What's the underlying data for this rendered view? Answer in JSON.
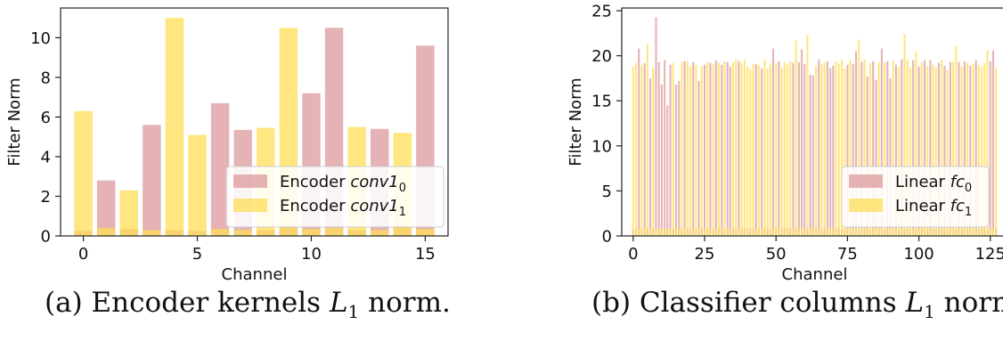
{
  "captions": {
    "a": {
      "prefix": "(a) Encoder kernels ",
      "math": "L",
      "sub": "1",
      "suffix": " norm."
    },
    "b": {
      "prefix": "(b) Classifier columns ",
      "math": "L",
      "sub": "1",
      "suffix": " norm."
    }
  },
  "colors": {
    "series0": "#dc9a9c",
    "series1": "#ffdd55",
    "overlap": "#ff8c00"
  },
  "chart_data": [
    {
      "type": "bar",
      "xlabel": "Channel",
      "ylabel": "Filter Norm",
      "xlim": [
        -1,
        16
      ],
      "ylim": [
        0,
        11.5
      ],
      "xticks": [
        0,
        5,
        10,
        15
      ],
      "yticks": [
        0,
        2,
        4,
        6,
        8,
        10
      ],
      "legend_position": "lower-right",
      "series": [
        {
          "name": "Encoder conv1",
          "subscript": "0",
          "color": "#dc9a9c",
          "x": [
            0,
            1,
            2,
            3,
            4,
            5,
            6,
            7,
            8,
            9,
            10,
            11,
            12,
            13,
            14,
            15
          ],
          "values": [
            0.25,
            2.8,
            0.35,
            5.6,
            0.3,
            0.25,
            6.7,
            5.35,
            0.3,
            0.45,
            7.2,
            10.5,
            0.3,
            5.4,
            0.45,
            9.6
          ]
        },
        {
          "name": "Encoder conv1",
          "subscript": "1",
          "color": "#ffdd55",
          "x": [
            0,
            1,
            2,
            3,
            4,
            5,
            6,
            7,
            8,
            9,
            10,
            11,
            12,
            13,
            14,
            15
          ],
          "values": [
            6.3,
            0.4,
            2.3,
            0.3,
            11.0,
            5.1,
            0.35,
            0.3,
            5.45,
            10.5,
            0.35,
            0.4,
            5.5,
            0.3,
            5.2,
            0.35
          ]
        }
      ]
    },
    {
      "type": "bar",
      "xlabel": "Channel",
      "ylabel": "Filter Norm",
      "xlim": [
        -4,
        131
      ],
      "ylim": [
        0,
        25.3
      ],
      "xticks": [
        0,
        25,
        50,
        75,
        100,
        125
      ],
      "yticks": [
        0,
        5,
        10,
        15,
        20,
        25
      ],
      "legend_position": "lower-right",
      "series": [
        {
          "name": "Linear fc",
          "subscript": "0",
          "color": "#dc9a9c",
          "x": [
            0,
            1,
            2,
            3,
            4,
            5,
            6,
            7,
            8,
            9,
            10,
            11,
            12,
            13,
            14,
            15,
            16,
            17,
            18,
            19,
            20,
            21,
            22,
            23,
            24,
            25,
            26,
            27,
            28,
            29,
            30,
            31,
            32,
            33,
            34,
            35,
            36,
            37,
            38,
            39,
            40,
            41,
            42,
            43,
            44,
            45,
            46,
            47,
            48,
            49,
            50,
            51,
            52,
            53,
            54,
            55,
            56,
            57,
            58,
            59,
            60,
            61,
            62,
            63,
            64,
            65,
            66,
            67,
            68,
            69,
            70,
            71,
            72,
            73,
            74,
            75,
            76,
            77,
            78,
            79,
            80,
            81,
            82,
            83,
            84,
            85,
            86,
            87,
            88,
            89,
            90,
            91,
            92,
            93,
            94,
            95,
            96,
            97,
            98,
            99,
            100,
            101,
            102,
            103,
            104,
            105,
            106,
            107,
            108,
            109,
            110,
            111,
            112,
            113,
            114,
            115,
            116,
            117,
            118,
            119,
            120,
            121,
            122,
            123,
            124,
            125,
            126,
            127
          ],
          "values": [
            0.8,
            0.9,
            20.8,
            0.8,
            19.2,
            0.8,
            17.5,
            0.9,
            24.3,
            19.3,
            16.8,
            19.5,
            14.5,
            19.0,
            0.8,
            16.8,
            17.2,
            0.9,
            19.4,
            0.8,
            0.9,
            19.3,
            0.8,
            17.2,
            0.9,
            19.0,
            0.8,
            19.2,
            0.8,
            19.5,
            0.9,
            19.0,
            0.8,
            19.3,
            18.8,
            0.9,
            0.8,
            19.4,
            0.8,
            0.9,
            0.8,
            0.8,
            0.9,
            19.1,
            0.8,
            18.6,
            0.9,
            0.8,
            0.8,
            20.8,
            0.9,
            19.4,
            0.8,
            0.9,
            0.8,
            0.8,
            19.2,
            0.9,
            19.3,
            20.7,
            19.1,
            0.8,
            17.9,
            17.8,
            0.9,
            19.6,
            0.8,
            0.9,
            19.4,
            18.6,
            18.9,
            0.8,
            0.9,
            0.8,
            0.8,
            19.0,
            0.9,
            19.1,
            20.5,
            0.8,
            19.3,
            0.9,
            17.7,
            0.8,
            19.4,
            17.3,
            0.9,
            20.8,
            0.8,
            19.4,
            17.5,
            0.9,
            19.0,
            0.8,
            19.6,
            0.8,
            0.9,
            0.8,
            19.5,
            0.8,
            18.8,
            0.9,
            19.5,
            0.8,
            19.5,
            0.8,
            0.8,
            19.2,
            0.9,
            18.9,
            0.8,
            19.3,
            0.9,
            0.8,
            19.3,
            0.8,
            19.4,
            0.9,
            18.9,
            0.8,
            19.5,
            0.8,
            0.9,
            0.8,
            0.8,
            19.4,
            20.6,
            0.9
          ]
        },
        {
          "name": "Linear fc",
          "subscript": "1",
          "color": "#ffdd55",
          "x": [
            0,
            1,
            2,
            3,
            4,
            5,
            6,
            7,
            8,
            9,
            10,
            11,
            12,
            13,
            14,
            15,
            16,
            17,
            18,
            19,
            20,
            21,
            22,
            23,
            24,
            25,
            26,
            27,
            28,
            29,
            30,
            31,
            32,
            33,
            34,
            35,
            36,
            37,
            38,
            39,
            40,
            41,
            42,
            43,
            44,
            45,
            46,
            47,
            48,
            49,
            50,
            51,
            52,
            53,
            54,
            55,
            56,
            57,
            58,
            59,
            60,
            61,
            62,
            63,
            64,
            65,
            66,
            67,
            68,
            69,
            70,
            71,
            72,
            73,
            74,
            75,
            76,
            77,
            78,
            79,
            80,
            81,
            82,
            83,
            84,
            85,
            86,
            87,
            88,
            89,
            90,
            91,
            92,
            93,
            94,
            95,
            96,
            97,
            98,
            99,
            100,
            101,
            102,
            103,
            104,
            105,
            106,
            107,
            108,
            109,
            110,
            111,
            112,
            113,
            114,
            115,
            116,
            117,
            118,
            119,
            120,
            121,
            122,
            123,
            124,
            125,
            126,
            127
          ],
          "values": [
            18.8,
            19.2,
            0.8,
            19.0,
            0.9,
            21.3,
            0.8,
            18.7,
            0.8,
            0.9,
            0.8,
            0.9,
            0.8,
            0.8,
            19.2,
            0.9,
            0.8,
            19.3,
            0.8,
            19.4,
            18.8,
            0.8,
            19.0,
            0.9,
            18.9,
            0.8,
            19.3,
            0.9,
            19.1,
            0.8,
            19.2,
            0.8,
            19.4,
            0.9,
            0.8,
            19.3,
            19.6,
            0.8,
            19.2,
            19.6,
            18.8,
            18.5,
            19.1,
            0.8,
            19.0,
            0.9,
            19.6,
            18.6,
            19.1,
            0.8,
            19.2,
            0.9,
            18.7,
            19.3,
            19.0,
            19.4,
            0.8,
            21.7,
            0.8,
            0.9,
            0.8,
            22.3,
            0.8,
            0.9,
            18.9,
            0.8,
            19.1,
            19.3,
            0.8,
            0.9,
            0.8,
            19.4,
            19.1,
            19.6,
            18.6,
            0.8,
            19.5,
            0.9,
            0.8,
            21.8,
            0.8,
            19.6,
            0.8,
            19.2,
            0.9,
            0.8,
            19.3,
            0.9,
            19.3,
            0.8,
            0.9,
            19.5,
            0.8,
            18.8,
            0.8,
            22.4,
            19.6,
            18.7,
            0.8,
            20.5,
            0.8,
            19.3,
            0.9,
            18.8,
            0.8,
            19.0,
            18.7,
            0.8,
            19.5,
            0.9,
            18.4,
            0.8,
            19.3,
            21.1,
            0.8,
            18.8,
            0.9,
            19.2,
            0.8,
            19.1,
            0.8,
            19.0,
            18.8,
            19.2,
            20.6,
            0.8,
            0.9,
            18.6
          ]
        }
      ]
    }
  ]
}
